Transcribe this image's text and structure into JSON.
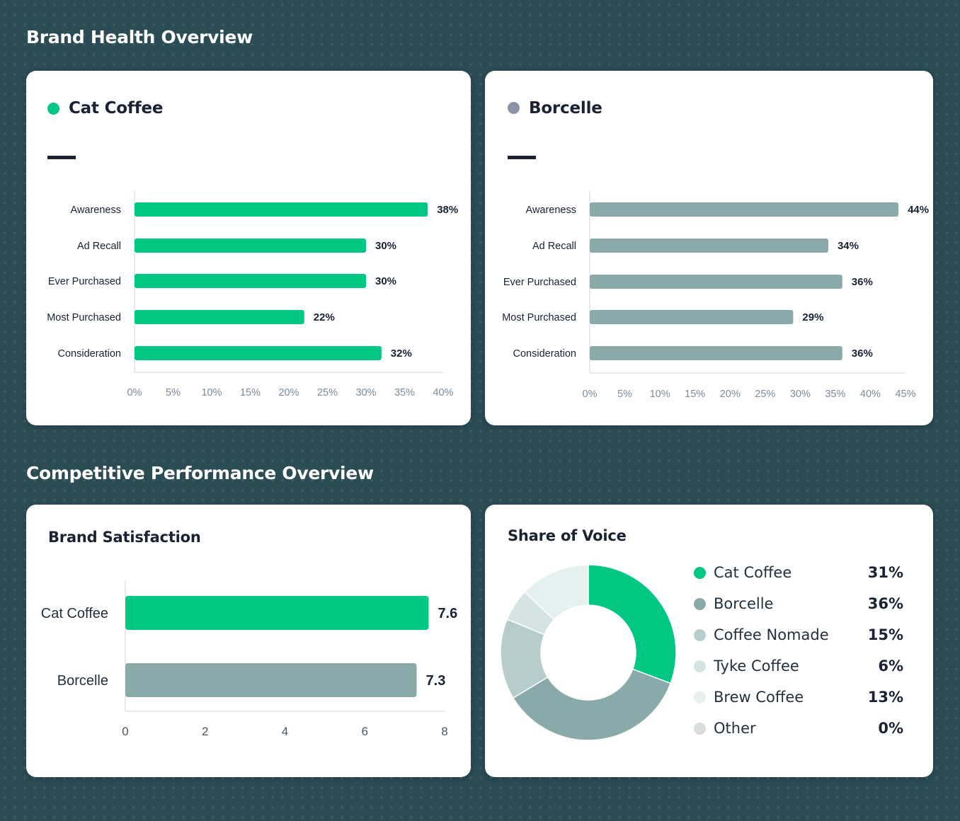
{
  "header": {
    "section1_title": "Brand Health Overview",
    "section2_title": "Competitive Performance Overview"
  },
  "colors": {
    "cat_coffee": "#00c781",
    "borcelle": "#8aa9a9",
    "axis": "#dfe3e6",
    "tick_text": "#7b8a9a",
    "label_text": "#1a2233"
  },
  "icons": [
    "brand-dot-icon",
    "dash-icon",
    "legend-dot-icon"
  ],
  "chart_data": [
    {
      "type": "bar",
      "orientation": "horizontal",
      "title": "Cat Coffee",
      "title_dot_color": "#00c781",
      "bar_color": "#00c781",
      "categories": [
        "Awareness",
        "Ad Recall",
        "Ever Purchased",
        "Most Purchased",
        "Consideration"
      ],
      "values": [
        38,
        30,
        30,
        22,
        32
      ],
      "value_labels": [
        "38%",
        "30%",
        "30%",
        "22%",
        "32%"
      ],
      "ticks": [
        "0%",
        "5%",
        "10%",
        "15%",
        "20%",
        "25%",
        "30%",
        "35%",
        "40%"
      ],
      "xlim": [
        0,
        40
      ]
    },
    {
      "type": "bar",
      "orientation": "horizontal",
      "title": "Borcelle",
      "title_dot_color": "#8a94a6",
      "bar_color": "#8aa9a9",
      "categories": [
        "Awareness",
        "Ad Recall",
        "Ever Purchased",
        "Most Purchased",
        "Consideration"
      ],
      "values": [
        44,
        34,
        36,
        29,
        36
      ],
      "value_labels": [
        "44%",
        "34%",
        "36%",
        "29%",
        "36%"
      ],
      "ticks": [
        "0%",
        "5%",
        "10%",
        "15%",
        "20%",
        "25%",
        "30%",
        "35%",
        "40%",
        "45%"
      ],
      "xlim": [
        0,
        45
      ]
    },
    {
      "type": "bar",
      "orientation": "horizontal",
      "title": "Brand Satisfaction",
      "categories": [
        "Cat Coffee",
        "Borcelle"
      ],
      "values": [
        7.6,
        7.3
      ],
      "value_labels": [
        "7.6",
        "7.3"
      ],
      "bar_colors": [
        "#00c781",
        "#8aa9a9"
      ],
      "ticks": [
        "0",
        "2",
        "4",
        "6",
        "8"
      ],
      "xlim": [
        0,
        8
      ]
    },
    {
      "type": "pie",
      "donut": true,
      "title": "Share of Voice",
      "categories": [
        "Cat Coffee",
        "Borcelle",
        "Coffee Nomade",
        "Tyke Coffee",
        "Brew Coffee",
        "Other"
      ],
      "values": [
        31,
        36,
        15,
        6,
        13,
        0
      ],
      "value_labels": [
        "31%",
        "36%",
        "15%",
        "6%",
        "13%",
        "0%"
      ],
      "colors": [
        "#00c781",
        "#8aa9a9",
        "#b6cdcc",
        "#d3e4e2",
        "#e6f0ef",
        "#d9dcdd"
      ],
      "legend": "right"
    }
  ]
}
